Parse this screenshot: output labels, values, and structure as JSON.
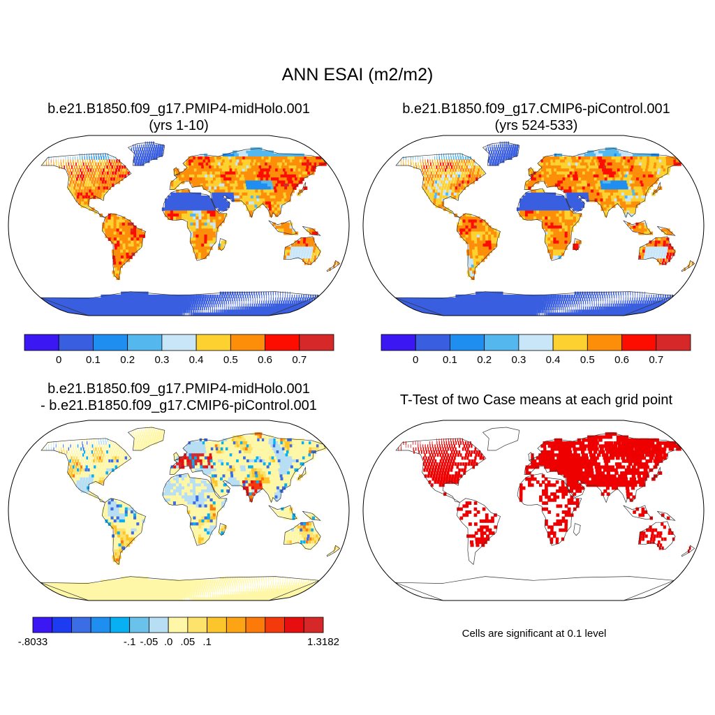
{
  "figure": {
    "title": "ANN ESAI (m2/m2)"
  },
  "panels": [
    {
      "id": "case1",
      "title_line1": "b.e21.B1850.f09_g17.PMIP4-midHolo.001",
      "title_line2": "(yrs 1-10)",
      "palette": [
        "#3b17f4",
        "#3a5ee0",
        "#1e8ef0",
        "#54b8ee",
        "#c8e6f8",
        "#fdd12f",
        "#fd8e0a",
        "#fd0d00",
        "#d62828"
      ],
      "labels": [
        "0",
        "0.1",
        "0.2",
        "0.3",
        "0.4",
        "0.5",
        "0.6",
        "0.7"
      ]
    },
    {
      "id": "case2",
      "title_line1": "b.e21.B1850.f09_g17.CMIP6-piControl.001",
      "title_line2": "(yrs 524-533)",
      "palette": [
        "#3b17f4",
        "#3a5ee0",
        "#1e8ef0",
        "#54b8ee",
        "#c8e6f8",
        "#fdd12f",
        "#fd8e0a",
        "#fd0d00",
        "#d62828"
      ],
      "labels": [
        "0",
        "0.1",
        "0.2",
        "0.3",
        "0.4",
        "0.5",
        "0.6",
        "0.7"
      ]
    },
    {
      "id": "diff",
      "title_line1": "b.e21.B1850.f09_g17.PMIP4-midHolo.001",
      "title_line2": "- b.e21.B1850.f09_g17.CMIP6-piControl.001",
      "palette": [
        "#3b17f4",
        "#1d3cf2",
        "#3b6de4",
        "#1e8ef0",
        "#07b0f3",
        "#6ac1ea",
        "#b8def4",
        "#fef7a8",
        "#fde26b",
        "#fdc52c",
        "#fda415",
        "#fb7a0a",
        "#f43a0d",
        "#e60e0e",
        "#d62828"
      ],
      "labels": [
        "-.8033",
        "-.1",
        "-.05",
        ".0",
        ".05",
        ".1",
        "1.3182"
      ]
    },
    {
      "id": "ttest",
      "title_line1": "T-Test of two Case means at each grid point",
      "note": "Cells are significant at 0.1 level",
      "signif_color": "#ee0000"
    }
  ]
}
